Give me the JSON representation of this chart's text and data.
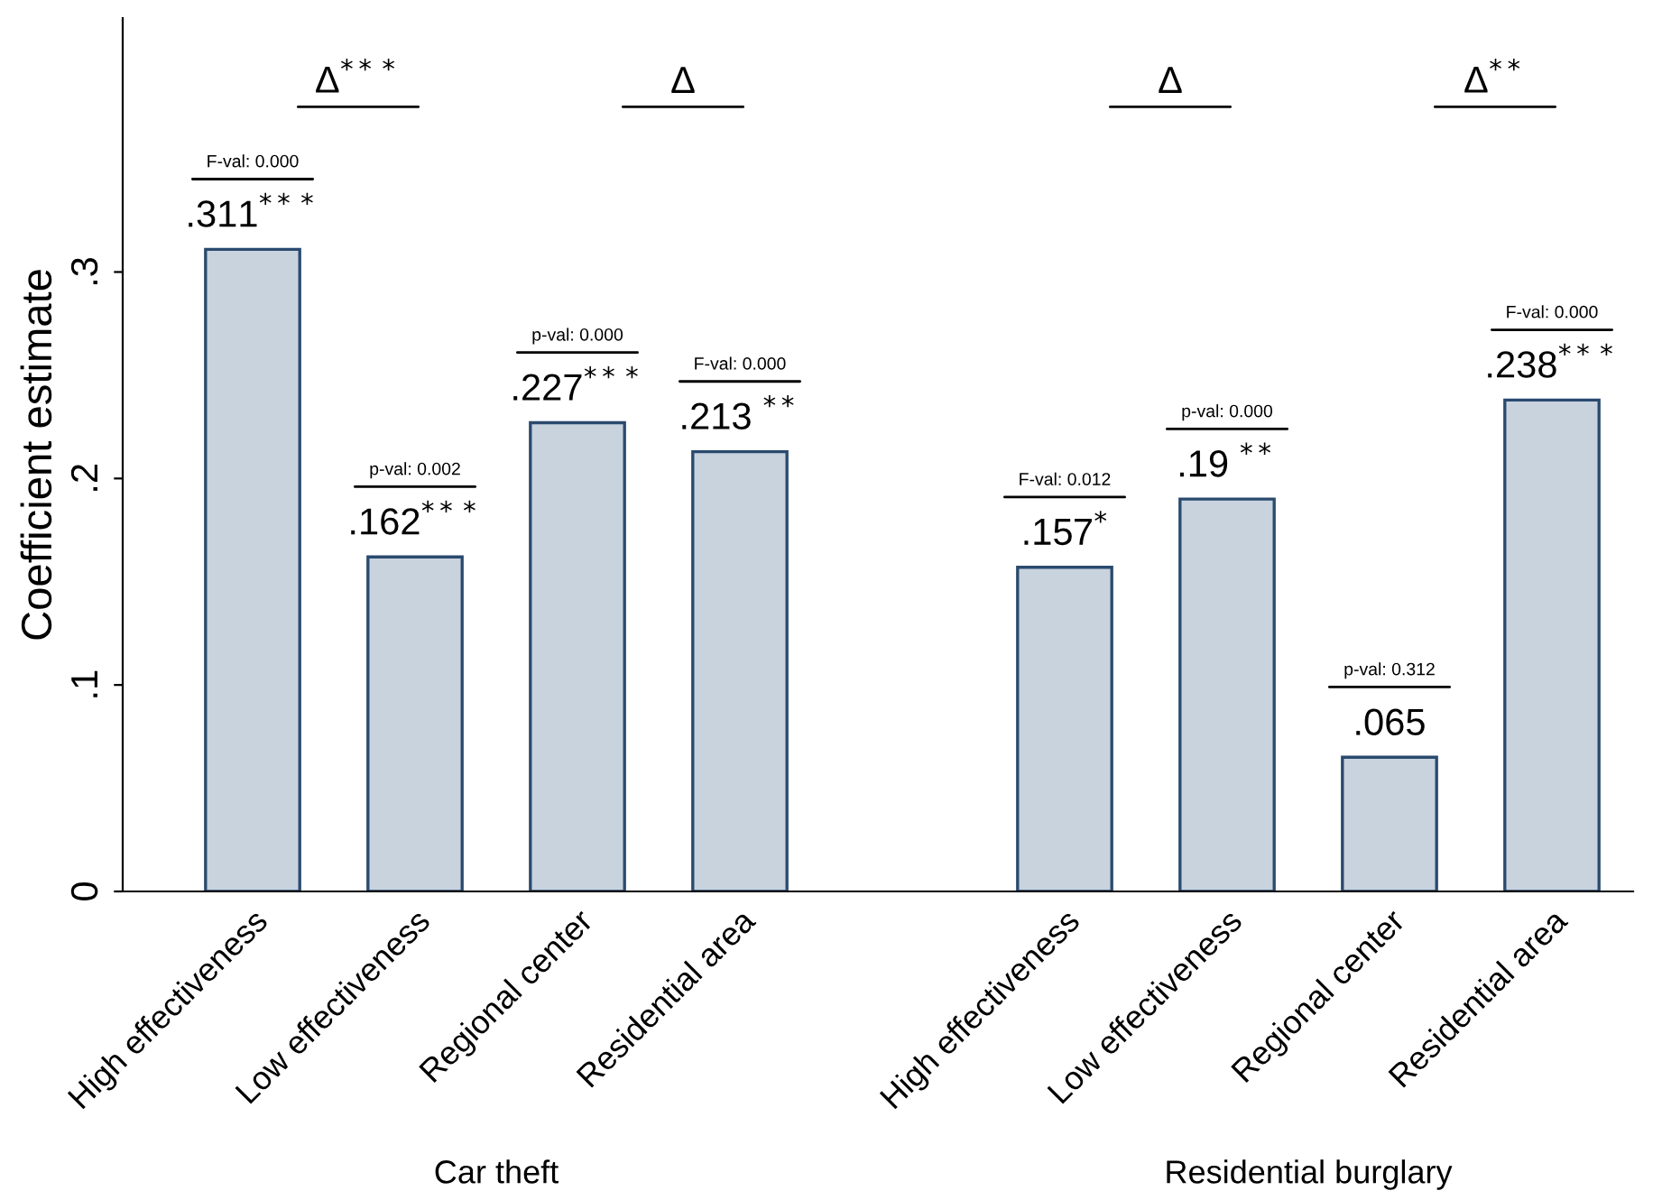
{
  "chart_data": {
    "type": "bar",
    "ylabel": "Coefficient estimate",
    "categories": [
      "High effectiveness",
      "Low effectiveness",
      "Regional center",
      "Residential area",
      null,
      "High effectiveness",
      "Low effectiveness",
      "Regional center",
      "Residential area"
    ],
    "values": [
      0.311,
      0.162,
      0.227,
      0.213,
      null,
      0.157,
      0.19,
      0.065,
      0.238
    ],
    "value_labels": [
      ".311$^{***}$",
      ".162$^{***}$",
      ".227$^{***}$",
      ".213 $^{**}$",
      null,
      ".157$^{*}$",
      ".19 $^{**}$",
      ".065",
      ".238$^{***}$"
    ],
    "color": "#c8d3de",
    "ylim": [
      0,
      0.423
    ],
    "yticks": [
      {
        "value": 0,
        "label": "0"
      },
      {
        "value": 0.1,
        "label": ".1"
      },
      {
        "value": 0.2,
        "label": ".2"
      },
      {
        "value": 0.3,
        "label": ".3"
      }
    ],
    "grid": false,
    "annotations": [
      "F-val: 0.000",
      "p-val: 0.002",
      "p-val: 0.000",
      "F-val: 0.000",
      "F-val: 0.012",
      "p-val: 0.000",
      "p-val: 0.312",
      "F-val: 0.000",
      "Δ$^{***}$",
      "Δ",
      "Δ",
      "Δ$^{**}$",
      "Car theft",
      "Residential burglary"
    ]
  }
}
